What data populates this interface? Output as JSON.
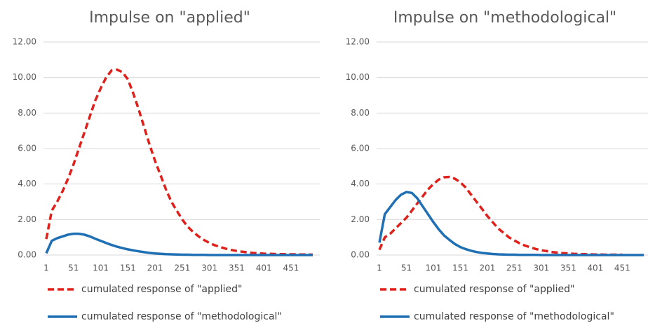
{
  "chart_data": [
    {
      "type": "line",
      "title": "Impulse on \"applied\"",
      "x": [
        1,
        11,
        21,
        31,
        41,
        51,
        61,
        71,
        81,
        91,
        101,
        111,
        121,
        131,
        141,
        151,
        161,
        171,
        181,
        191,
        201,
        211,
        221,
        231,
        241,
        251,
        261,
        271,
        281,
        291,
        301,
        311,
        321,
        331,
        341,
        351,
        361,
        371,
        381,
        391,
        401,
        411,
        421,
        431,
        441,
        451,
        461,
        471,
        481,
        491
      ],
      "xlim": [
        1,
        500
      ],
      "xticks": [
        1,
        51,
        101,
        151,
        201,
        251,
        301,
        351,
        401,
        451
      ],
      "ylim": [
        0,
        12
      ],
      "yticks": [
        {
          "value": 0,
          "label": "0.00"
        },
        {
          "value": 2,
          "label": "2.00"
        },
        {
          "value": 4,
          "label": "4.00"
        },
        {
          "value": 6,
          "label": "6.00"
        },
        {
          "value": 8,
          "label": "8.00"
        },
        {
          "value": 10,
          "label": "10.00"
        },
        {
          "value": 12,
          "label": "12.00"
        }
      ],
      "grid": true,
      "series": [
        {
          "name": "cumulated response of \"applied\"",
          "color": "#e0201b",
          "line_style": "dashed",
          "values": [
            0.9,
            2.5,
            3.0,
            3.6,
            4.3,
            5.1,
            6.0,
            6.9,
            7.8,
            8.7,
            9.4,
            10.0,
            10.4,
            10.45,
            10.3,
            9.9,
            9.1,
            8.2,
            7.2,
            6.2,
            5.3,
            4.5,
            3.7,
            3.0,
            2.5,
            2.0,
            1.6,
            1.3,
            1.05,
            0.85,
            0.68,
            0.55,
            0.45,
            0.36,
            0.29,
            0.23,
            0.19,
            0.15,
            0.12,
            0.1,
            0.08,
            0.07,
            0.06,
            0.05,
            0.05,
            0.04,
            0.04,
            0.03,
            0.03,
            0.02
          ]
        },
        {
          "name": "cumulated response of \"methodological\"",
          "color": "#1f6fb4",
          "line_style": "solid",
          "values": [
            0.1,
            0.8,
            0.95,
            1.05,
            1.15,
            1.2,
            1.2,
            1.15,
            1.05,
            0.92,
            0.8,
            0.68,
            0.57,
            0.47,
            0.39,
            0.32,
            0.26,
            0.21,
            0.16,
            0.12,
            0.09,
            0.07,
            0.05,
            0.04,
            0.03,
            0.02,
            0.02,
            0.01,
            0.01,
            0.01,
            0,
            0,
            0,
            0,
            0,
            0,
            0,
            0,
            0,
            0,
            0,
            0,
            0,
            0,
            0,
            0,
            0,
            0,
            0,
            0
          ]
        }
      ]
    },
    {
      "type": "line",
      "title": "Impulse on \"methodological\"",
      "x": [
        1,
        11,
        21,
        31,
        41,
        51,
        61,
        71,
        81,
        91,
        101,
        111,
        121,
        131,
        141,
        151,
        161,
        171,
        181,
        191,
        201,
        211,
        221,
        231,
        241,
        251,
        261,
        271,
        281,
        291,
        301,
        311,
        321,
        331,
        341,
        351,
        361,
        371,
        381,
        391,
        401,
        411,
        421,
        431,
        441,
        451,
        461,
        471,
        481,
        491
      ],
      "xlim": [
        1,
        500
      ],
      "xticks": [
        1,
        51,
        101,
        151,
        201,
        251,
        301,
        351,
        401,
        451
      ],
      "ylim": [
        0,
        12
      ],
      "yticks": [
        {
          "value": 0,
          "label": "0.00"
        },
        {
          "value": 2,
          "label": "2.00"
        },
        {
          "value": 4,
          "label": "4.00"
        },
        {
          "value": 6,
          "label": "6.00"
        },
        {
          "value": 8,
          "label": "8.00"
        },
        {
          "value": 10,
          "label": "10.00"
        },
        {
          "value": 12,
          "label": "12.00"
        }
      ],
      "grid": true,
      "series": [
        {
          "name": "cumulated response of \"applied\"",
          "color": "#e0201b",
          "line_style": "dashed",
          "values": [
            0.3,
            1.0,
            1.2,
            1.5,
            1.8,
            2.1,
            2.5,
            2.9,
            3.3,
            3.7,
            4.0,
            4.25,
            4.38,
            4.4,
            4.3,
            4.1,
            3.8,
            3.4,
            3.0,
            2.6,
            2.2,
            1.85,
            1.5,
            1.25,
            1.0,
            0.82,
            0.66,
            0.53,
            0.43,
            0.34,
            0.27,
            0.22,
            0.17,
            0.14,
            0.11,
            0.09,
            0.07,
            0.06,
            0.05,
            0.04,
            0.03,
            0.03,
            0.02,
            0.02,
            0.02,
            0.02,
            null,
            null,
            null,
            null
          ]
        },
        {
          "name": "cumulated response of \"methodological\"",
          "color": "#1f6fb4",
          "line_style": "solid",
          "values": [
            0.7,
            2.3,
            2.7,
            3.1,
            3.4,
            3.55,
            3.5,
            3.2,
            2.75,
            2.3,
            1.85,
            1.45,
            1.1,
            0.85,
            0.62,
            0.45,
            0.33,
            0.24,
            0.17,
            0.12,
            0.09,
            0.06,
            0.04,
            0.03,
            0.02,
            0.02,
            0.01,
            0.01,
            0.01,
            0.01,
            0,
            0,
            0,
            0,
            0,
            0,
            0,
            0,
            0,
            0,
            0,
            0,
            0,
            0,
            0,
            0,
            0,
            0,
            0,
            0
          ]
        }
      ]
    }
  ]
}
